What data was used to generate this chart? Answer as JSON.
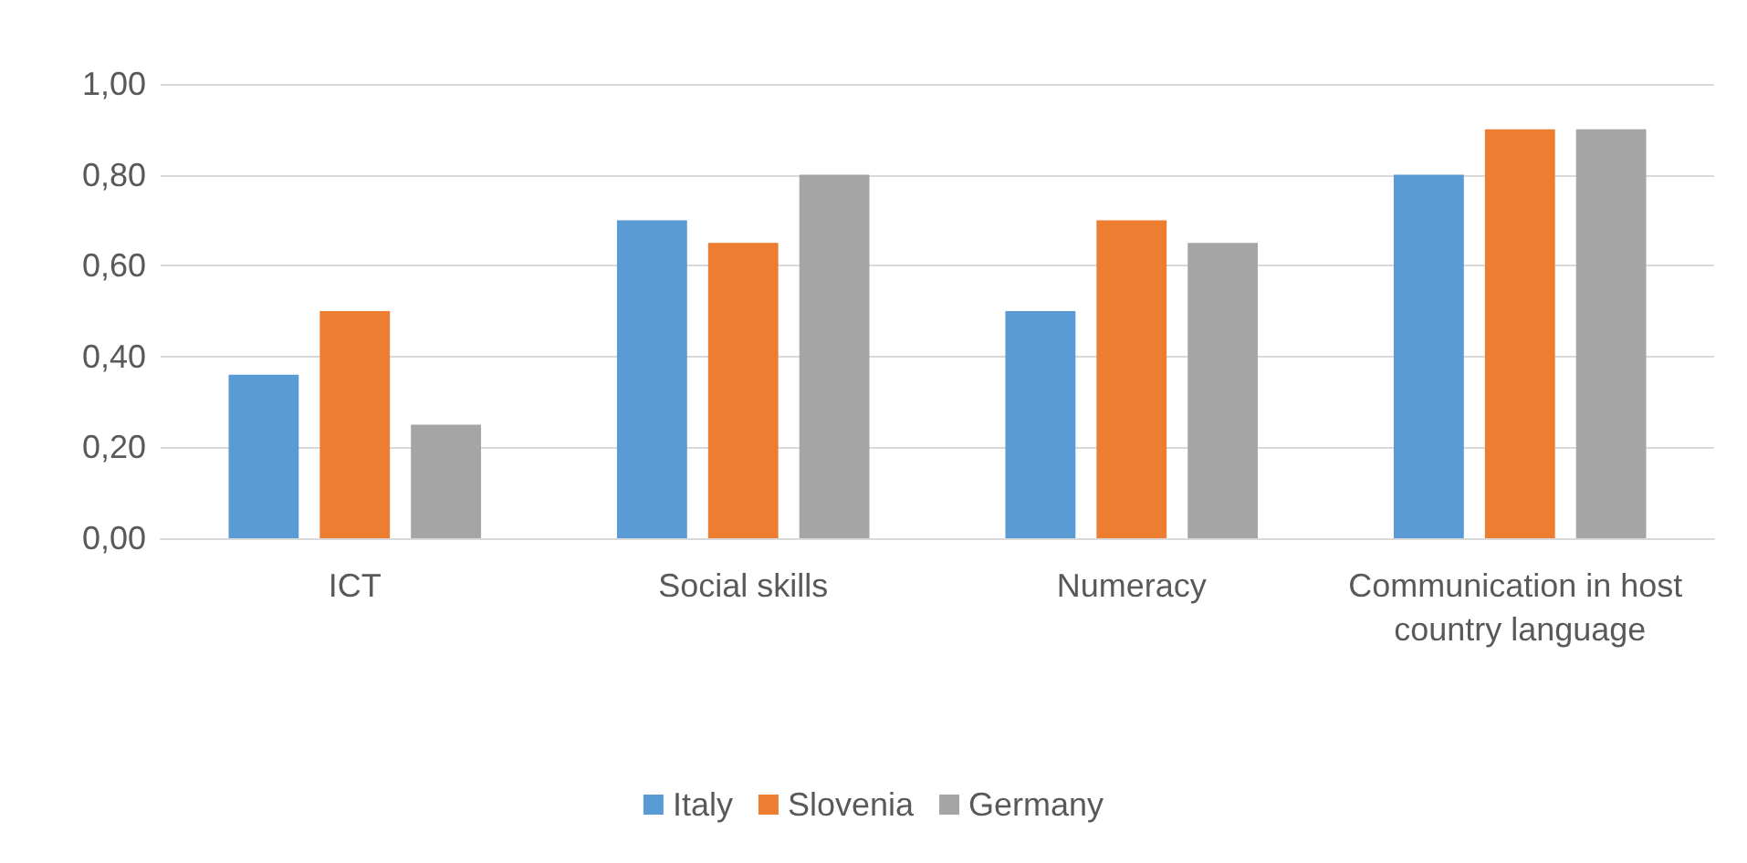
{
  "chart_data": {
    "type": "bar",
    "categories": [
      "ICT",
      "Social skills",
      "Numeracy",
      "Communication in host country language"
    ],
    "series": [
      {
        "name": "Italy",
        "color": "#5b9bd5",
        "values": [
          0.36,
          0.7,
          0.5,
          0.8
        ]
      },
      {
        "name": "Slovenia",
        "color": "#ed7d31",
        "values": [
          0.5,
          0.65,
          0.7,
          0.9
        ]
      },
      {
        "name": "Germany",
        "color": "#a5a5a5",
        "values": [
          0.25,
          0.8,
          0.65,
          0.9
        ]
      }
    ],
    "ylim": [
      0,
      1
    ],
    "yticks": [
      {
        "value": 0,
        "label": "0,00"
      },
      {
        "value": 0.2,
        "label": "0,20"
      },
      {
        "value": 0.4,
        "label": "0,40"
      },
      {
        "value": 0.6,
        "label": "0,60"
      },
      {
        "value": 0.8,
        "label": "0,80"
      },
      {
        "value": 1,
        "label": "1,00"
      }
    ],
    "grid": "y",
    "legend": "bottom"
  }
}
